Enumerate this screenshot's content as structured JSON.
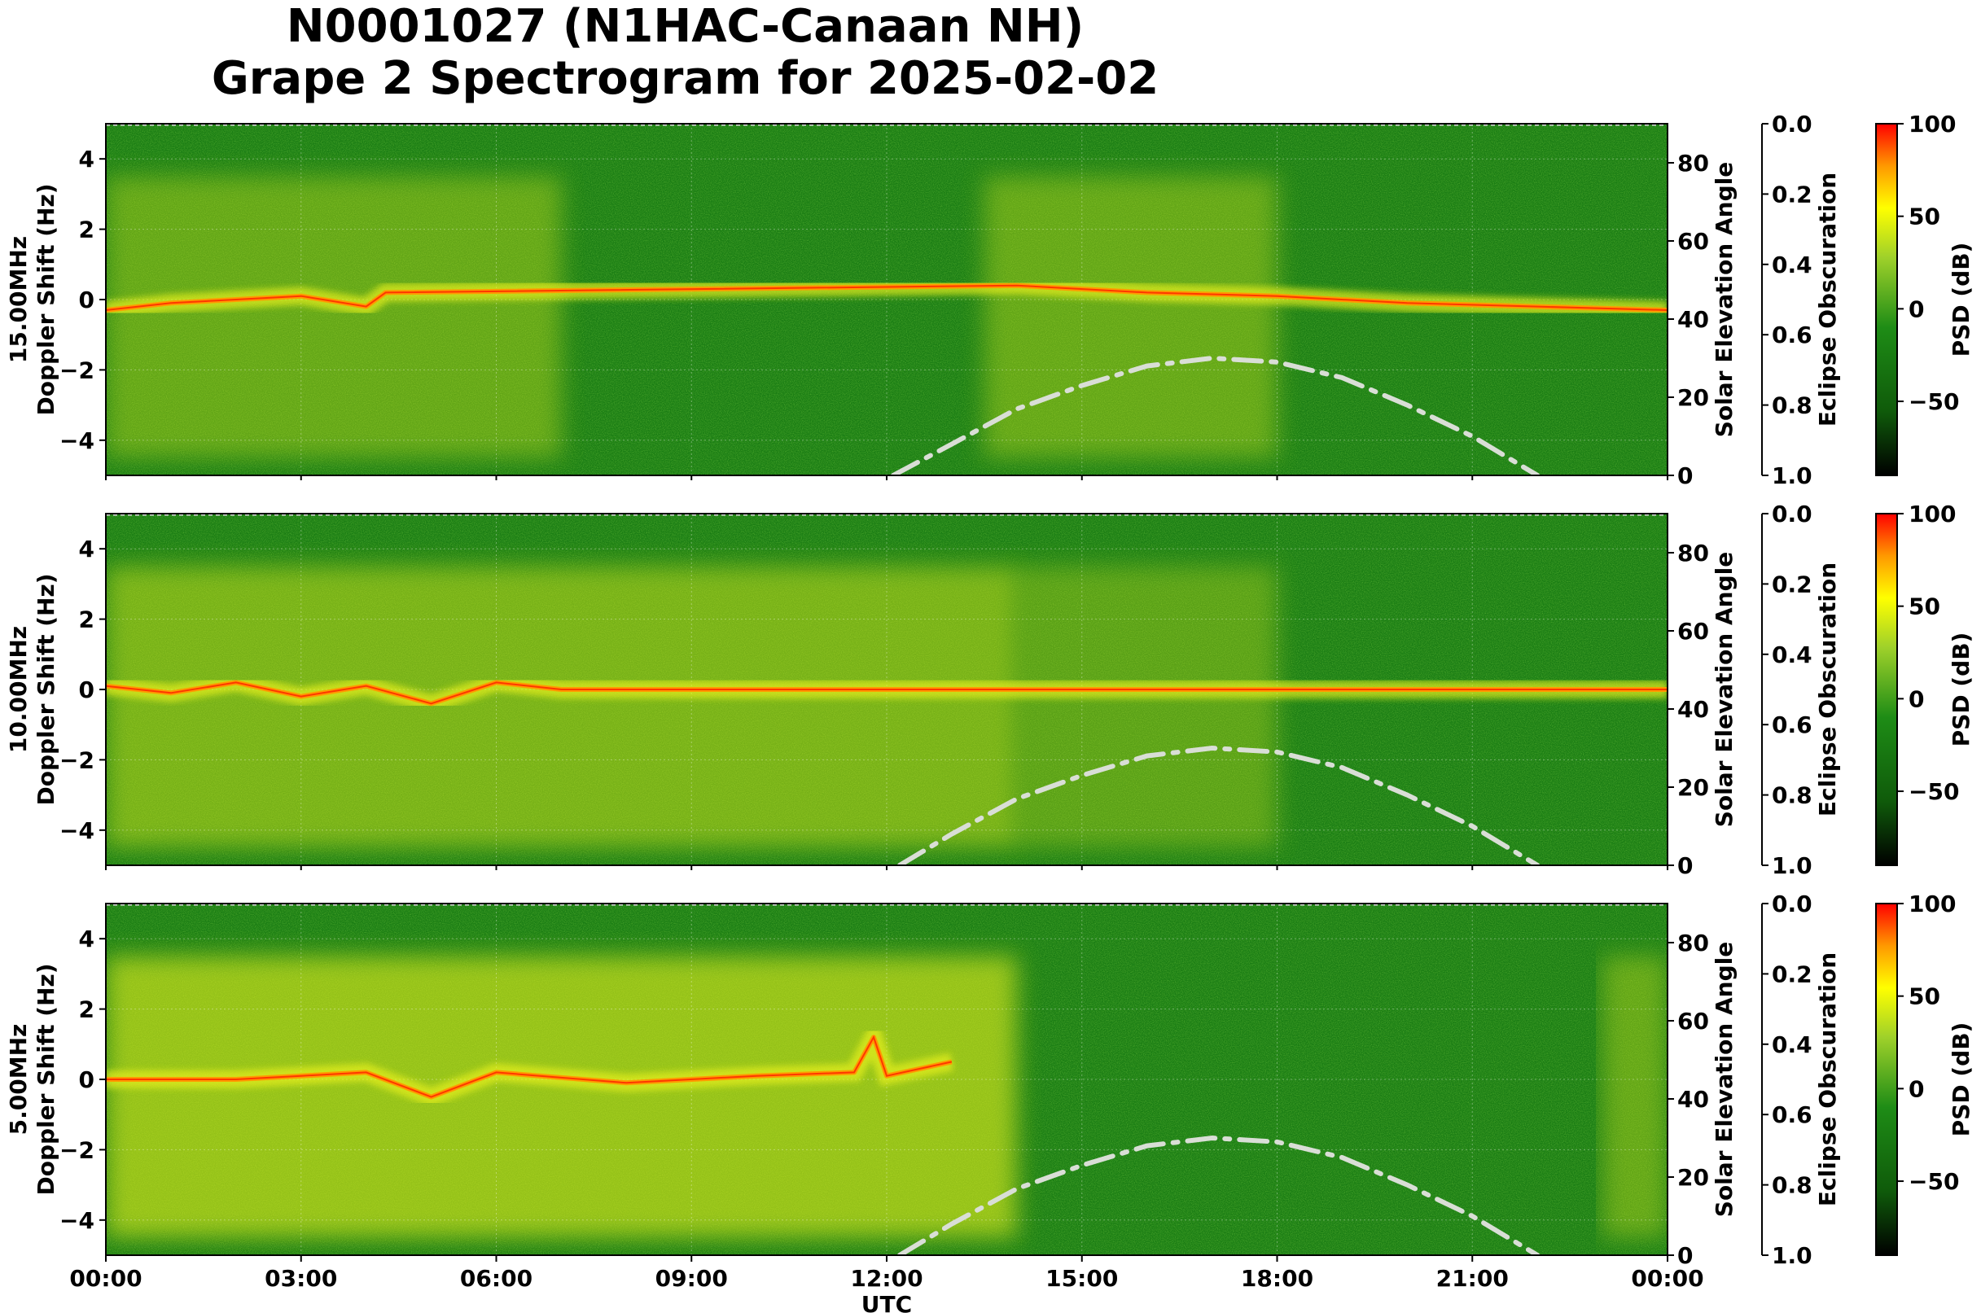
{
  "title_line1": "N0001027 (N1HAC-Canaan NH)",
  "title_line2": "Grape 2 Spectrogram for 2025-02-02",
  "chart_data": [
    {
      "type": "heatmap",
      "panel_label": "15.00MHz",
      "ylabel": "Doppler Shift (Hz)",
      "xlabel": "",
      "xlim": [
        "00:00",
        "24:00"
      ],
      "ylim": [
        -5,
        5
      ],
      "y_ticks": [
        -4,
        -2,
        0,
        2,
        4
      ],
      "y2_label": "Solar Elevation Angle",
      "y2_lim": [
        0,
        90
      ],
      "y2_ticks": [
        0,
        20,
        40,
        60,
        80
      ],
      "y3_label": "Eclipse Obscuration",
      "y3_lim": [
        1.0,
        0.0
      ],
      "y3_ticks": [
        "0.0",
        "0.2",
        "0.4",
        "0.6",
        "0.8",
        "1.0"
      ],
      "colorbar_label": "PSD (dB)",
      "colorbar_ticks": [
        100,
        50,
        0,
        -50
      ],
      "colorbar_range": [
        -90,
        100
      ],
      "carrier_doppler_trace": [
        [
          0,
          -0.3
        ],
        [
          1,
          -0.1
        ],
        [
          2,
          0.0
        ],
        [
          3,
          0.1
        ],
        [
          4,
          -0.2
        ],
        [
          4.3,
          0.2
        ],
        [
          14,
          0.4
        ],
        [
          16,
          0.2
        ],
        [
          18,
          0.1
        ],
        [
          20,
          -0.1
        ],
        [
          22,
          -0.2
        ],
        [
          24,
          -0.3
        ]
      ],
      "solar_elevation": [
        [
          12.1,
          0
        ],
        [
          13,
          8
        ],
        [
          14,
          17
        ],
        [
          15,
          23
        ],
        [
          16,
          28
        ],
        [
          17,
          30
        ],
        [
          18,
          29
        ],
        [
          19,
          25
        ],
        [
          20,
          18
        ],
        [
          21,
          10
        ],
        [
          22,
          0
        ]
      ],
      "grid": true
    },
    {
      "type": "heatmap",
      "panel_label": "10.00MHz",
      "ylabel": "Doppler Shift (Hz)",
      "xlabel": "",
      "xlim": [
        "00:00",
        "24:00"
      ],
      "ylim": [
        -5,
        5
      ],
      "y_ticks": [
        -4,
        -2,
        0,
        2,
        4
      ],
      "y2_label": "Solar Elevation Angle",
      "y2_lim": [
        0,
        90
      ],
      "y2_ticks": [
        0,
        20,
        40,
        60,
        80
      ],
      "y3_label": "Eclipse Obscuration",
      "y3_lim": [
        1.0,
        0.0
      ],
      "y3_ticks": [
        "0.0",
        "0.2",
        "0.4",
        "0.6",
        "0.8",
        "1.0"
      ],
      "colorbar_label": "PSD (dB)",
      "colorbar_ticks": [
        100,
        50,
        0,
        -50
      ],
      "colorbar_range": [
        -90,
        100
      ],
      "carrier_doppler_trace": [
        [
          0,
          0.1
        ],
        [
          1,
          -0.1
        ],
        [
          2,
          0.2
        ],
        [
          3,
          -0.2
        ],
        [
          4,
          0.1
        ],
        [
          5,
          -0.4
        ],
        [
          6,
          0.2
        ],
        [
          7,
          0.0
        ],
        [
          12,
          0.0
        ],
        [
          24,
          0.0
        ]
      ],
      "solar_elevation": [
        [
          12.2,
          0
        ],
        [
          13,
          8
        ],
        [
          14,
          17
        ],
        [
          15,
          23
        ],
        [
          16,
          28
        ],
        [
          17,
          30
        ],
        [
          18,
          29
        ],
        [
          19,
          25
        ],
        [
          20,
          18
        ],
        [
          21,
          10
        ],
        [
          22,
          0
        ]
      ],
      "grid": true
    },
    {
      "type": "heatmap",
      "panel_label": "5.00MHz",
      "ylabel": "Doppler Shift (Hz)",
      "xlabel": "UTC",
      "xlim": [
        "00:00",
        "24:00"
      ],
      "x_ticks": [
        "00:00",
        "03:00",
        "06:00",
        "09:00",
        "12:00",
        "15:00",
        "18:00",
        "21:00",
        "00:00"
      ],
      "ylim": [
        -5,
        5
      ],
      "y_ticks": [
        -4,
        -2,
        0,
        2,
        4
      ],
      "y2_label": "Solar Elevation Angle",
      "y2_lim": [
        0,
        90
      ],
      "y2_ticks": [
        0,
        20,
        40,
        60,
        80
      ],
      "y3_label": "Eclipse Obscuration",
      "y3_lim": [
        1.0,
        0.0
      ],
      "y3_ticks": [
        "0.0",
        "0.2",
        "0.4",
        "0.6",
        "0.8",
        "1.0"
      ],
      "colorbar_label": "PSD (dB)",
      "colorbar_ticks": [
        100,
        50,
        0,
        -50
      ],
      "colorbar_range": [
        -90,
        100
      ],
      "carrier_doppler_trace": [
        [
          0,
          0.0
        ],
        [
          2,
          0.0
        ],
        [
          3,
          0.1
        ],
        [
          4,
          0.2
        ],
        [
          5,
          -0.5
        ],
        [
          6,
          0.2
        ],
        [
          8,
          -0.1
        ],
        [
          10,
          0.1
        ],
        [
          11.5,
          0.2
        ],
        [
          11.8,
          1.2
        ],
        [
          12,
          0.1
        ],
        [
          13,
          0.5
        ]
      ],
      "solar_elevation": [
        [
          12.2,
          0
        ],
        [
          13,
          8
        ],
        [
          14,
          17
        ],
        [
          15,
          23
        ],
        [
          16,
          28
        ],
        [
          17,
          30
        ],
        [
          18,
          29
        ],
        [
          19,
          25
        ],
        [
          20,
          18
        ],
        [
          21,
          10
        ],
        [
          22,
          0
        ]
      ],
      "grid": true
    }
  ],
  "colors": {
    "background_green": "#1a7d14",
    "yellow": "#e6ef1f",
    "orange": "#ff9a00",
    "red": "#ff1e00",
    "solar_curve": "#d9ded6",
    "colorbar_stops": [
      "#000000",
      "#0f5a0a",
      "#1e8c16",
      "#9fd12a",
      "#ffff00",
      "#ff9900",
      "#ff0000"
    ]
  }
}
